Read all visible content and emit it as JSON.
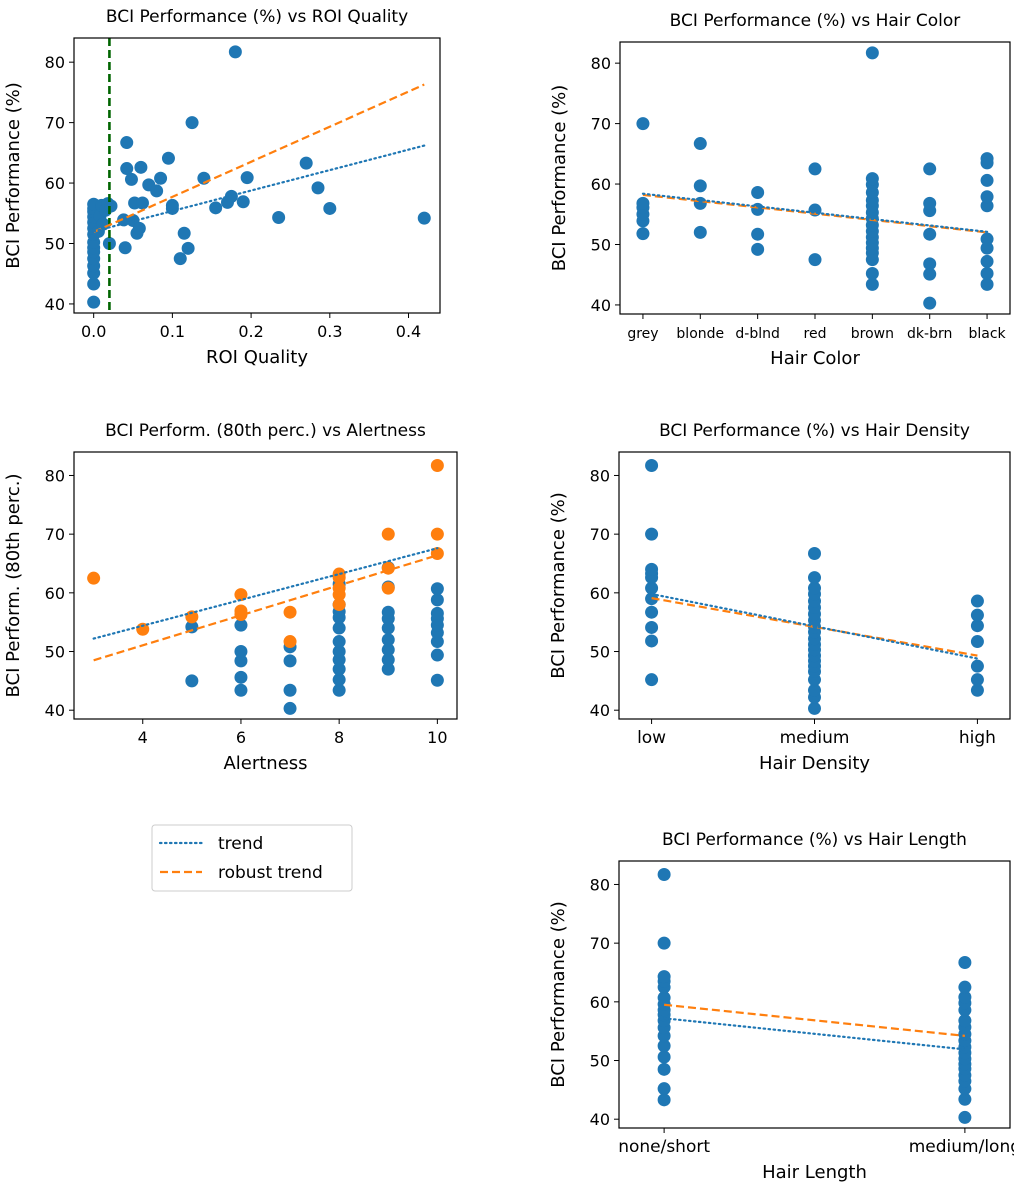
{
  "legend": {
    "trend_label": "trend",
    "robust_label": "robust trend"
  },
  "colors": {
    "blue": "#1f77b4",
    "orange": "#ff7f0e",
    "green": "#006400"
  },
  "chart_data": [
    {
      "id": "roi",
      "type": "scatter",
      "title": "BCI Performance (%) vs ROI Quality",
      "xlabel": "ROI Quality",
      "ylabel": "BCI Performance (%)",
      "xlim": [
        -0.025,
        0.44
      ],
      "ylim": [
        38.5,
        84
      ],
      "xticks": [
        0.0,
        0.1,
        0.2,
        0.3,
        0.4
      ],
      "xtick_labels": [
        "0.0",
        "0.1",
        "0.2",
        "0.3",
        "0.4"
      ],
      "yticks": [
        40,
        50,
        60,
        70,
        80
      ],
      "vline": {
        "x": 0.02,
        "style": "dashed"
      },
      "points": [
        [
          0,
          40.3
        ],
        [
          0,
          43.3
        ],
        [
          0,
          45.1
        ],
        [
          0,
          46.3
        ],
        [
          0,
          47.5
        ],
        [
          0,
          48.6
        ],
        [
          0,
          49.3
        ],
        [
          0,
          50.2
        ],
        [
          0,
          51.5
        ],
        [
          0,
          52.5
        ],
        [
          0,
          53.5
        ],
        [
          0,
          54.4
        ],
        [
          0,
          55.3
        ],
        [
          0,
          55.8
        ],
        [
          0,
          56.5
        ],
        [
          0.006,
          52.0
        ],
        [
          0.008,
          54.5
        ],
        [
          0.01,
          56.3
        ],
        [
          0.012,
          53.2
        ],
        [
          0.015,
          55.5
        ],
        [
          0.018,
          56.6
        ],
        [
          0.02,
          50.0
        ],
        [
          0.022,
          56.2
        ],
        [
          0.038,
          53.9
        ],
        [
          0.04,
          49.3
        ],
        [
          0.042,
          62.4
        ],
        [
          0.042,
          66.7
        ],
        [
          0.048,
          60.6
        ],
        [
          0.05,
          53.8
        ],
        [
          0.052,
          56.7
        ],
        [
          0.055,
          51.7
        ],
        [
          0.058,
          52.5
        ],
        [
          0.06,
          62.6
        ],
        [
          0.062,
          56.7
        ],
        [
          0.07,
          59.7
        ],
        [
          0.08,
          58.7
        ],
        [
          0.085,
          60.8
        ],
        [
          0.095,
          64.1
        ],
        [
          0.1,
          56.3
        ],
        [
          0.1,
          55.8
        ],
        [
          0.11,
          47.5
        ],
        [
          0.115,
          51.7
        ],
        [
          0.12,
          49.2
        ],
        [
          0.125,
          70.0
        ],
        [
          0.14,
          60.8
        ],
        [
          0.155,
          55.9
        ],
        [
          0.17,
          56.8
        ],
        [
          0.175,
          57.8
        ],
        [
          0.18,
          81.7
        ],
        [
          0.19,
          56.9
        ],
        [
          0.195,
          60.9
        ],
        [
          0.235,
          54.3
        ],
        [
          0.27,
          63.3
        ],
        [
          0.285,
          59.2
        ],
        [
          0.3,
          55.8
        ],
        [
          0.42,
          54.2
        ]
      ],
      "trend": {
        "x": [
          0.0,
          0.42
        ],
        "y": [
          52.0,
          66.2
        ]
      },
      "robust_trend": {
        "x": [
          0.0,
          0.42
        ],
        "y": [
          51.9,
          76.3
        ]
      }
    },
    {
      "id": "haircolor",
      "type": "scatter",
      "title": "BCI Performance (%) vs Hair Color",
      "xlabel": "Hair Color",
      "ylabel": "BCI Performance (%)",
      "categories": [
        "grey",
        "blonde",
        "d-blnd",
        "red",
        "brown",
        "dk-brn",
        "black"
      ],
      "ylim": [
        38.5,
        83.5
      ],
      "yticks": [
        40,
        50,
        60,
        70,
        80
      ],
      "points": [
        [
          0,
          51.8
        ],
        [
          0,
          53.9
        ],
        [
          0,
          55.0
        ],
        [
          0,
          56.1
        ],
        [
          0,
          56.8
        ],
        [
          0,
          70.0
        ],
        [
          1,
          52.0
        ],
        [
          1,
          56.8
        ],
        [
          1,
          59.7
        ],
        [
          1,
          66.7
        ],
        [
          2,
          49.2
        ],
        [
          2,
          51.7
        ],
        [
          2,
          55.8
        ],
        [
          2,
          58.6
        ],
        [
          3,
          47.5
        ],
        [
          3,
          55.7
        ],
        [
          3,
          62.5
        ],
        [
          4,
          43.4
        ],
        [
          4,
          45.2
        ],
        [
          4,
          47.5
        ],
        [
          4,
          48.6
        ],
        [
          4,
          49.4
        ],
        [
          4,
          50.3
        ],
        [
          4,
          51.2
        ],
        [
          4,
          52.2
        ],
        [
          4,
          53.2
        ],
        [
          4,
          54.3
        ],
        [
          4,
          55.3
        ],
        [
          4,
          56.4
        ],
        [
          4,
          57.3
        ],
        [
          4,
          58.6
        ],
        [
          4,
          59.9
        ],
        [
          4,
          60.9
        ],
        [
          4,
          81.7
        ],
        [
          5,
          40.3
        ],
        [
          5,
          45.1
        ],
        [
          5,
          46.8
        ],
        [
          5,
          51.7
        ],
        [
          5,
          55.6
        ],
        [
          5,
          56.8
        ],
        [
          5,
          62.5
        ],
        [
          6,
          43.4
        ],
        [
          6,
          45.2
        ],
        [
          6,
          47.2
        ],
        [
          6,
          49.4
        ],
        [
          6,
          50.9
        ],
        [
          6,
          56.4
        ],
        [
          6,
          57.9
        ],
        [
          6,
          60.6
        ],
        [
          6,
          63.5
        ],
        [
          6,
          64.2
        ]
      ],
      "trend": {
        "x": [
          0,
          6
        ],
        "y": [
          58.4,
          52.1
        ]
      },
      "robust_trend": {
        "x": [
          0,
          6
        ],
        "y": [
          58.2,
          52.0
        ]
      }
    },
    {
      "id": "alertness",
      "type": "scatter",
      "title": "BCI Perform. (80th perc.) vs Alertness",
      "xlabel": "Alertness",
      "ylabel": "BCI Perform. (80th perc.)",
      "xlim": [
        2.6,
        10.4
      ],
      "ylim": [
        38.5,
        84
      ],
      "xticks": [
        4,
        6,
        8,
        10
      ],
      "yticks": [
        40,
        50,
        60,
        70,
        80
      ],
      "points": [
        [
          5,
          45.0
        ],
        [
          5,
          54.2
        ],
        [
          6,
          43.4
        ],
        [
          6,
          45.6
        ],
        [
          6,
          48.4
        ],
        [
          6,
          50.0
        ],
        [
          6,
          54.5
        ],
        [
          7,
          40.3
        ],
        [
          7,
          43.4
        ],
        [
          7,
          48.4
        ],
        [
          7,
          50.8
        ],
        [
          8,
          43.4
        ],
        [
          8,
          45.2
        ],
        [
          8,
          47.0
        ],
        [
          8,
          48.6
        ],
        [
          8,
          50.0
        ],
        [
          8,
          51.7
        ],
        [
          8,
          54.0
        ],
        [
          8,
          55.8
        ],
        [
          8,
          56.8
        ],
        [
          8,
          58.0
        ],
        [
          8,
          61.5
        ],
        [
          9,
          47.0
        ],
        [
          9,
          48.6
        ],
        [
          9,
          50.3
        ],
        [
          9,
          52.0
        ],
        [
          9,
          54.0
        ],
        [
          9,
          55.6
        ],
        [
          9,
          56.7
        ],
        [
          9,
          61.0
        ],
        [
          9,
          64.3
        ],
        [
          10,
          45.1
        ],
        [
          10,
          49.4
        ],
        [
          10,
          51.7
        ],
        [
          10,
          53.2
        ],
        [
          10,
          54.5
        ],
        [
          10,
          55.6
        ],
        [
          10,
          56.5
        ],
        [
          10,
          58.8
        ],
        [
          10,
          60.7
        ]
      ],
      "points_80th": [
        [
          3,
          62.5
        ],
        [
          4,
          53.8
        ],
        [
          5,
          55.9
        ],
        [
          6,
          56.3
        ],
        [
          6,
          56.9
        ],
        [
          6,
          59.7
        ],
        [
          7,
          51.7
        ],
        [
          7,
          56.7
        ],
        [
          8,
          58.0
        ],
        [
          8,
          59.7
        ],
        [
          8,
          60.8
        ],
        [
          8,
          62.6
        ],
        [
          8,
          63.2
        ],
        [
          9,
          60.8
        ],
        [
          9,
          64.2
        ],
        [
          9,
          70.0
        ],
        [
          10,
          66.7
        ],
        [
          10,
          70.0
        ],
        [
          10,
          81.7
        ]
      ],
      "trend": {
        "x": [
          3,
          10
        ],
        "y": [
          52.2,
          67.6
        ]
      },
      "robust_trend": {
        "x": [
          3,
          10
        ],
        "y": [
          48.5,
          66.4
        ]
      }
    },
    {
      "id": "hairdensity",
      "type": "scatter",
      "title": "BCI Performance (%) vs Hair Density",
      "xlabel": "Hair Density",
      "ylabel": "BCI Performance (%)",
      "categories": [
        "low",
        "medium",
        "high"
      ],
      "ylim": [
        38.5,
        84
      ],
      "yticks": [
        40,
        50,
        60,
        70,
        80
      ],
      "points": [
        [
          0,
          45.2
        ],
        [
          0,
          51.8
        ],
        [
          0,
          54.1
        ],
        [
          0,
          56.7
        ],
        [
          0,
          59.0
        ],
        [
          0,
          60.8
        ],
        [
          0,
          62.6
        ],
        [
          0,
          63.3
        ],
        [
          0,
          64.0
        ],
        [
          0,
          70.0
        ],
        [
          0,
          81.7
        ],
        [
          1,
          40.3
        ],
        [
          1,
          42.2
        ],
        [
          1,
          43.4
        ],
        [
          1,
          45.2
        ],
        [
          1,
          46.6
        ],
        [
          1,
          47.5
        ],
        [
          1,
          48.4
        ],
        [
          1,
          49.3
        ],
        [
          1,
          50.3
        ],
        [
          1,
          51.2
        ],
        [
          1,
          52.2
        ],
        [
          1,
          53.3
        ],
        [
          1,
          54.2
        ],
        [
          1,
          55.3
        ],
        [
          1,
          56.4
        ],
        [
          1,
          57.5
        ],
        [
          1,
          58.6
        ],
        [
          1,
          59.8
        ],
        [
          1,
          60.8
        ],
        [
          1,
          62.6
        ],
        [
          1,
          66.7
        ],
        [
          2,
          43.4
        ],
        [
          2,
          45.2
        ],
        [
          2,
          47.5
        ],
        [
          2,
          51.7
        ],
        [
          2,
          54.4
        ],
        [
          2,
          56.2
        ],
        [
          2,
          58.6
        ]
      ],
      "trend": {
        "x": [
          0,
          2
        ],
        "y": [
          59.8,
          48.8
        ]
      },
      "robust_trend": {
        "x": [
          0,
          2
        ],
        "y": [
          59.1,
          49.3
        ]
      }
    },
    {
      "id": "hairlength",
      "type": "scatter",
      "title": "BCI Performance (%) vs Hair Length",
      "xlabel": "Hair Length",
      "ylabel": "BCI Performance (%)",
      "categories": [
        "none/short",
        "medium/long"
      ],
      "ylim": [
        38.5,
        84
      ],
      "yticks": [
        40,
        50,
        60,
        70,
        80
      ],
      "points": [
        [
          0,
          43.3
        ],
        [
          0,
          45.2
        ],
        [
          0,
          48.5
        ],
        [
          0,
          50.6
        ],
        [
          0,
          52.5
        ],
        [
          0,
          54.2
        ],
        [
          0,
          55.6
        ],
        [
          0,
          56.8
        ],
        [
          0,
          57.8
        ],
        [
          0,
          58.6
        ],
        [
          0,
          59.6
        ],
        [
          0,
          60.7
        ],
        [
          0,
          62.5
        ],
        [
          0,
          63.5
        ],
        [
          0,
          64.3
        ],
        [
          0,
          70.0
        ],
        [
          0,
          81.7
        ],
        [
          1,
          40.3
        ],
        [
          1,
          43.4
        ],
        [
          1,
          45.2
        ],
        [
          1,
          46.5
        ],
        [
          1,
          47.5
        ],
        [
          1,
          48.6
        ],
        [
          1,
          49.4
        ],
        [
          1,
          50.3
        ],
        [
          1,
          51.3
        ],
        [
          1,
          52.3
        ],
        [
          1,
          53.4
        ],
        [
          1,
          54.5
        ],
        [
          1,
          55.7
        ],
        [
          1,
          56.8
        ],
        [
          1,
          58.6
        ],
        [
          1,
          59.8
        ],
        [
          1,
          60.8
        ],
        [
          1,
          62.5
        ],
        [
          1,
          66.7
        ]
      ],
      "trend": {
        "x": [
          0,
          1
        ],
        "y": [
          57.2,
          51.9
        ]
      },
      "robust_trend": {
        "x": [
          0,
          1
        ],
        "y": [
          59.5,
          54.2
        ]
      }
    }
  ]
}
